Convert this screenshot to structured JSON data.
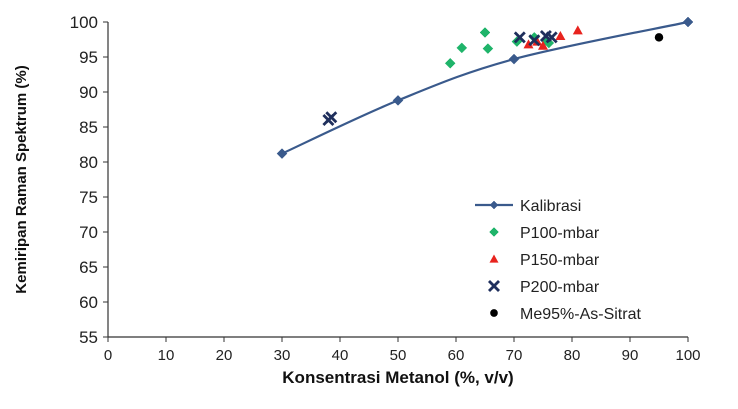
{
  "chart_data": {
    "type": "scatter",
    "xlabel": "Konsentrasi Metanol (%, v/v)",
    "ylabel": "Kemiripan Raman Spektrum (%)",
    "xlim": [
      0,
      100
    ],
    "ylim": [
      55,
      100
    ],
    "xticks": [
      "0",
      "10",
      "20",
      "30",
      "40",
      "50",
      "60",
      "70",
      "80",
      "90",
      "100"
    ],
    "yticks": [
      "55",
      "60",
      "65",
      "70",
      "75",
      "80",
      "85",
      "90",
      "95",
      "100"
    ],
    "grid": false,
    "legend_position": "bottom-right",
    "series": [
      {
        "name": "Kalibrasi",
        "marker": "diamond",
        "line": true,
        "color": "#3a5a8c",
        "points": [
          [
            30,
            81.2
          ],
          [
            50,
            88.8
          ],
          [
            70,
            94.7
          ],
          [
            100,
            100
          ]
        ]
      },
      {
        "name": "P100-mbar",
        "marker": "diamond",
        "line": false,
        "color": "#1fb46a",
        "points": [
          [
            59,
            94.1
          ],
          [
            61,
            96.3
          ],
          [
            65,
            98.5
          ],
          [
            65.5,
            96.2
          ],
          [
            70.5,
            97.2
          ],
          [
            73.5,
            97.8
          ],
          [
            75.5,
            97.4
          ],
          [
            76,
            97.0
          ]
        ]
      },
      {
        "name": "P150-mbar",
        "marker": "triangle",
        "line": false,
        "color": "#e8231e",
        "points": [
          [
            72.5,
            96.8
          ],
          [
            74,
            97.2
          ],
          [
            75,
            96.6
          ],
          [
            78,
            98.0
          ],
          [
            81,
            98.8
          ]
        ]
      },
      {
        "name": "P200-mbar",
        "marker": "x",
        "line": false,
        "color": "#1f2f5c",
        "points": [
          [
            38,
            86.0
          ],
          [
            38.5,
            86.4
          ],
          [
            71,
            97.8
          ],
          [
            73.5,
            97.4
          ],
          [
            75.5,
            98.0
          ],
          [
            76.5,
            97.8
          ]
        ]
      },
      {
        "name": "Me95%-As-Sitrat",
        "marker": "circle",
        "line": false,
        "color": "#000000",
        "points": [
          [
            95,
            97.8
          ]
        ]
      }
    ]
  }
}
